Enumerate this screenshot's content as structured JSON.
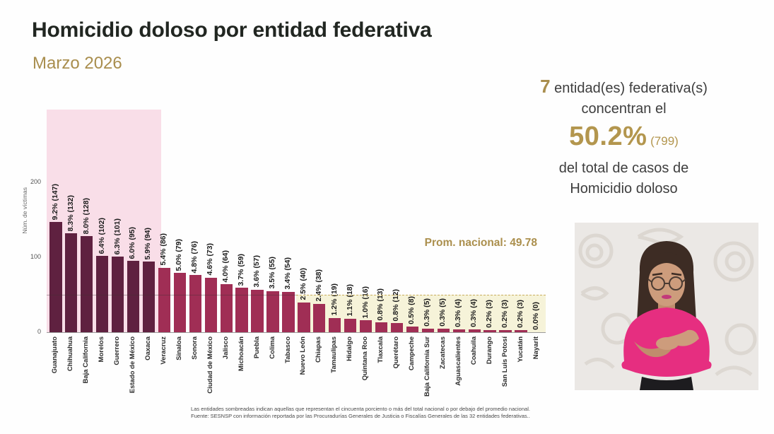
{
  "slide": {
    "title": "Homicidio doloso por entidad federativa",
    "subtitle": "Marzo 2026"
  },
  "summary": {
    "count": "7",
    "line1": " entidad(es) federativa(s)",
    "line2": "concentran el",
    "pct": "50.2%",
    "pct_count": " (799)",
    "line3": "del total de casos de",
    "line4": "Homicidio doloso"
  },
  "chart_data": {
    "type": "bar",
    "title": "Homicidio doloso por entidad federativa, Marzo 2026",
    "ylabel": "Núm. de víctimas",
    "yticks": [
      0,
      100,
      200
    ],
    "ylim": [
      0,
      297
    ],
    "grid": false,
    "avg_label": "Prom. nacional: 49.78",
    "avg_value": 49.78,
    "highlight_top_n": 7,
    "below_avg_start_index": 16,
    "categories": [
      "Guanajuato",
      "Chihuahua",
      "Baja California",
      "Morelos",
      "Guerrero",
      "Estado de México",
      "Oaxaca",
      "Veracruz",
      "Sinaloa",
      "Sonora",
      "Ciudad de México",
      "Jalisco",
      "Michoacán",
      "Puebla",
      "Colima",
      "Tabasco",
      "Nuevo León",
      "Chiapas",
      "Tamaulipas",
      "Hidalgo",
      "Quintana Roo",
      "Tlaxcala",
      "Querétaro",
      "Campeche",
      "Baja California Sur",
      "Zacatecas",
      "Aguascalientes",
      "Coahuila",
      "Durango",
      "San Luis Potosí",
      "Yucatán",
      "Nayarit"
    ],
    "values": [
      147,
      132,
      128,
      102,
      101,
      95,
      94,
      86,
      79,
      76,
      73,
      64,
      59,
      57,
      55,
      54,
      40,
      38,
      19,
      18,
      16,
      13,
      12,
      8,
      5,
      5,
      4,
      4,
      3,
      3,
      3,
      0
    ],
    "percent_labels": [
      "9.2%",
      "8.3%",
      "8.0%",
      "6.4%",
      "6.3%",
      "6.0%",
      "5.9%",
      "5.4%",
      "5.0%",
      "4.8%",
      "4.6%",
      "4.0%",
      "3.7%",
      "3.6%",
      "3.5%",
      "3.4%",
      "2.5%",
      "2.4%",
      "1.2%",
      "1.1%",
      "1.0%",
      "0.8%",
      "0.8%",
      "0.5%",
      "0.3%",
      "0.3%",
      "0.3%",
      "0.3%",
      "0.2%",
      "0.2%",
      "0.2%",
      "0.0%"
    ],
    "colors": {
      "bar_dark": "#5f2140",
      "bar_light": "#a02e55",
      "band_pink": "#f9dee8",
      "band_cream": "#f6f3d9",
      "avg_dash": "#c9ae5e",
      "accent_gold": "#a98e4e",
      "title_text": "#212621"
    }
  },
  "footer": {
    "note": "Las entidades sombreadas indican aquellas que representan el cincuenta porciento o más del total nacional o por debajo del promedio nacional.",
    "source": "Fuente: SESNSP con información reportada por las Procuradurías Generales de Justicia o Fiscalías Generales de las 32 entidades federativas.."
  }
}
